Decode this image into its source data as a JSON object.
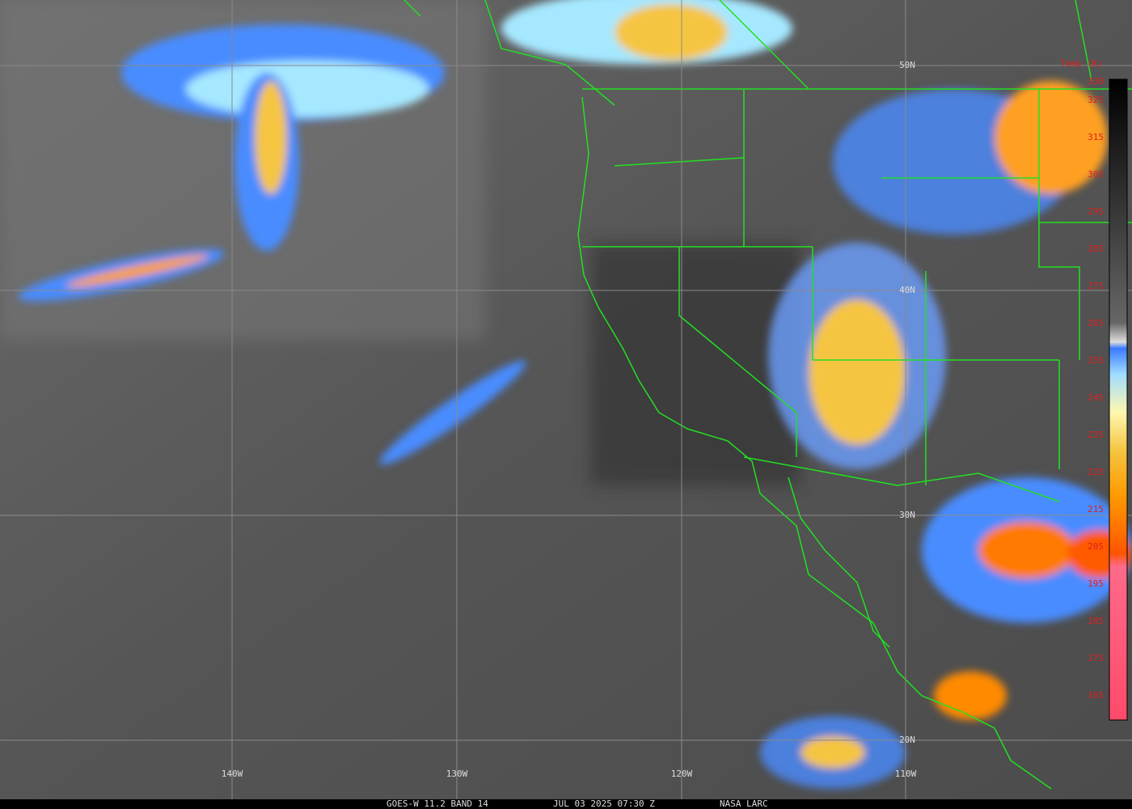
{
  "map": {
    "longitude_labels": [
      "140W",
      "130W",
      "120W",
      "110W"
    ],
    "latitude_labels": [
      "20N",
      "30N",
      "40N",
      "50N"
    ],
    "legend": {
      "title": "Temp (K)",
      "ticks": [
        330,
        325,
        315,
        305,
        295,
        285,
        275,
        265,
        255,
        245,
        235,
        225,
        215,
        205,
        195,
        185,
        175,
        165
      ]
    },
    "footer": {
      "satellite": "GOES-W 11.2 BAND 14",
      "time": "JUL 03 2025 07:30 Z",
      "source": "NASA LARC"
    }
  }
}
